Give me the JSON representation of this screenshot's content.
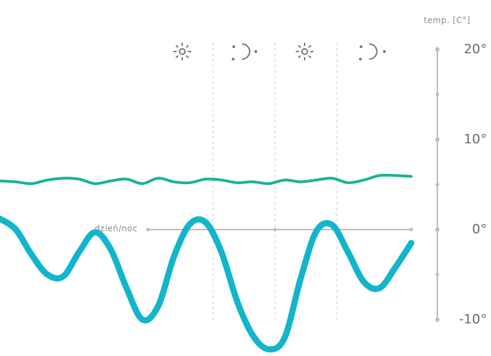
{
  "chart_data": {
    "type": "line",
    "y_axis_title": "temp. [C°]",
    "annotation": "dzień/noc",
    "categories": [
      null,
      null,
      null,
      null,
      null,
      null,
      null,
      null,
      null,
      null,
      null,
      null,
      null,
      null,
      null,
      null,
      null,
      null,
      null,
      null,
      null,
      null,
      null,
      null,
      null,
      null,
      null
    ],
    "series": [
      {
        "color": "#1ab394",
        "values": [
          5.4,
          5.3,
          5.1,
          5.5,
          5.7,
          5.6,
          5.1,
          5.4,
          5.6,
          5.1,
          5.7,
          5.3,
          5.2,
          5.6,
          5.5,
          5.2,
          5.3,
          5.1,
          5.5,
          5.3,
          5.5,
          5.7,
          5.2,
          5.5,
          6.0,
          6.0,
          5.9
        ]
      },
      {
        "color": "#12b5c9",
        "values": [
          1.2,
          0.0,
          -2.8,
          -5.0,
          -5.2,
          -2.5,
          -0.3,
          -2.2,
          -6.5,
          -10.0,
          -8.5,
          -3.0,
          0.6,
          0.8,
          -2.5,
          -8.0,
          -11.8,
          -13.3,
          -12.0,
          -5.5,
          -0.2,
          0.5,
          -2.5,
          -5.8,
          -6.5,
          -4.2,
          -1.5
        ]
      }
    ],
    "ylim": [
      -10,
      20
    ],
    "yticks": [
      {
        "value": 20,
        "label": "20°"
      },
      {
        "value": 10,
        "label": "10°"
      },
      {
        "value": 0,
        "label": "0°"
      },
      {
        "value": -10,
        "label": "-10°"
      }
    ]
  }
}
